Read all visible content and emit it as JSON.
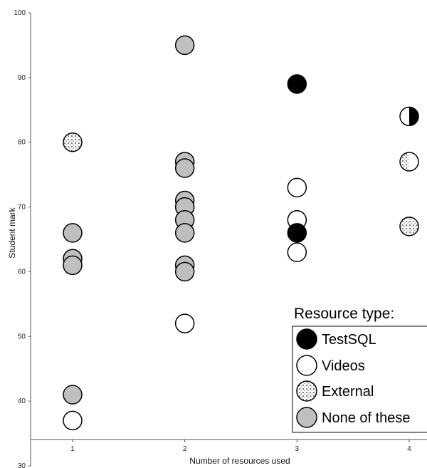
{
  "chart_data": {
    "type": "scatter",
    "xlabel": "Number of resources used",
    "ylabel": "Student mark",
    "xlim": [
      0.65,
      4.2
    ],
    "ylim": [
      30,
      100
    ],
    "x_ticks": [
      1,
      2,
      3,
      4
    ],
    "y_ticks": [
      30,
      40,
      50,
      60,
      70,
      80,
      90,
      100
    ],
    "grid": false,
    "legend": {
      "title": "Resource type:",
      "placement": "bottom-right",
      "entries": [
        {
          "label": "TestSQL",
          "marker": "filled"
        },
        {
          "label": "Videos",
          "marker": "open"
        },
        {
          "label": "External",
          "marker": "dotted"
        },
        {
          "label": "None of these",
          "marker": "grey"
        }
      ]
    },
    "colors": {
      "TestSQL": "#000000",
      "Videos": "#ffffff",
      "External": "#f0f0f0",
      "None of these": "#bfbfbf"
    },
    "points": [
      {
        "x": 1,
        "y": 80,
        "type": "External"
      },
      {
        "x": 1,
        "y": 66,
        "type": "None of these"
      },
      {
        "x": 1,
        "y": 62,
        "type": "None of these"
      },
      {
        "x": 1,
        "y": 61,
        "type": "None of these"
      },
      {
        "x": 1,
        "y": 41,
        "type": "None of these"
      },
      {
        "x": 1,
        "y": 37,
        "type": "Videos"
      },
      {
        "x": 2,
        "y": 95,
        "type": "None of these"
      },
      {
        "x": 2,
        "y": 77,
        "type": "None of these"
      },
      {
        "x": 2,
        "y": 76,
        "type": "None of these"
      },
      {
        "x": 2,
        "y": 71,
        "type": "None of these"
      },
      {
        "x": 2,
        "y": 70,
        "type": "None of these"
      },
      {
        "x": 2,
        "y": 68,
        "type": "None of these"
      },
      {
        "x": 2,
        "y": 66,
        "type": "None of these"
      },
      {
        "x": 2,
        "y": 61,
        "type": "None of these"
      },
      {
        "x": 2,
        "y": 60,
        "type": "None of these"
      },
      {
        "x": 2,
        "y": 52,
        "type": "Videos"
      },
      {
        "x": 3,
        "y": 89,
        "type": "TestSQL"
      },
      {
        "x": 3,
        "y": 73,
        "type": "Videos"
      },
      {
        "x": 3,
        "y": 68,
        "type": "Videos"
      },
      {
        "x": 3,
        "y": 66,
        "type": "TestSQL"
      },
      {
        "x": 3,
        "y": 63,
        "type": "Videos"
      },
      {
        "x": 4,
        "y": 84,
        "type": "TestSQL+Videos"
      },
      {
        "x": 4,
        "y": 77,
        "type": "Videos+External"
      },
      {
        "x": 4,
        "y": 67,
        "type": "External"
      }
    ]
  }
}
